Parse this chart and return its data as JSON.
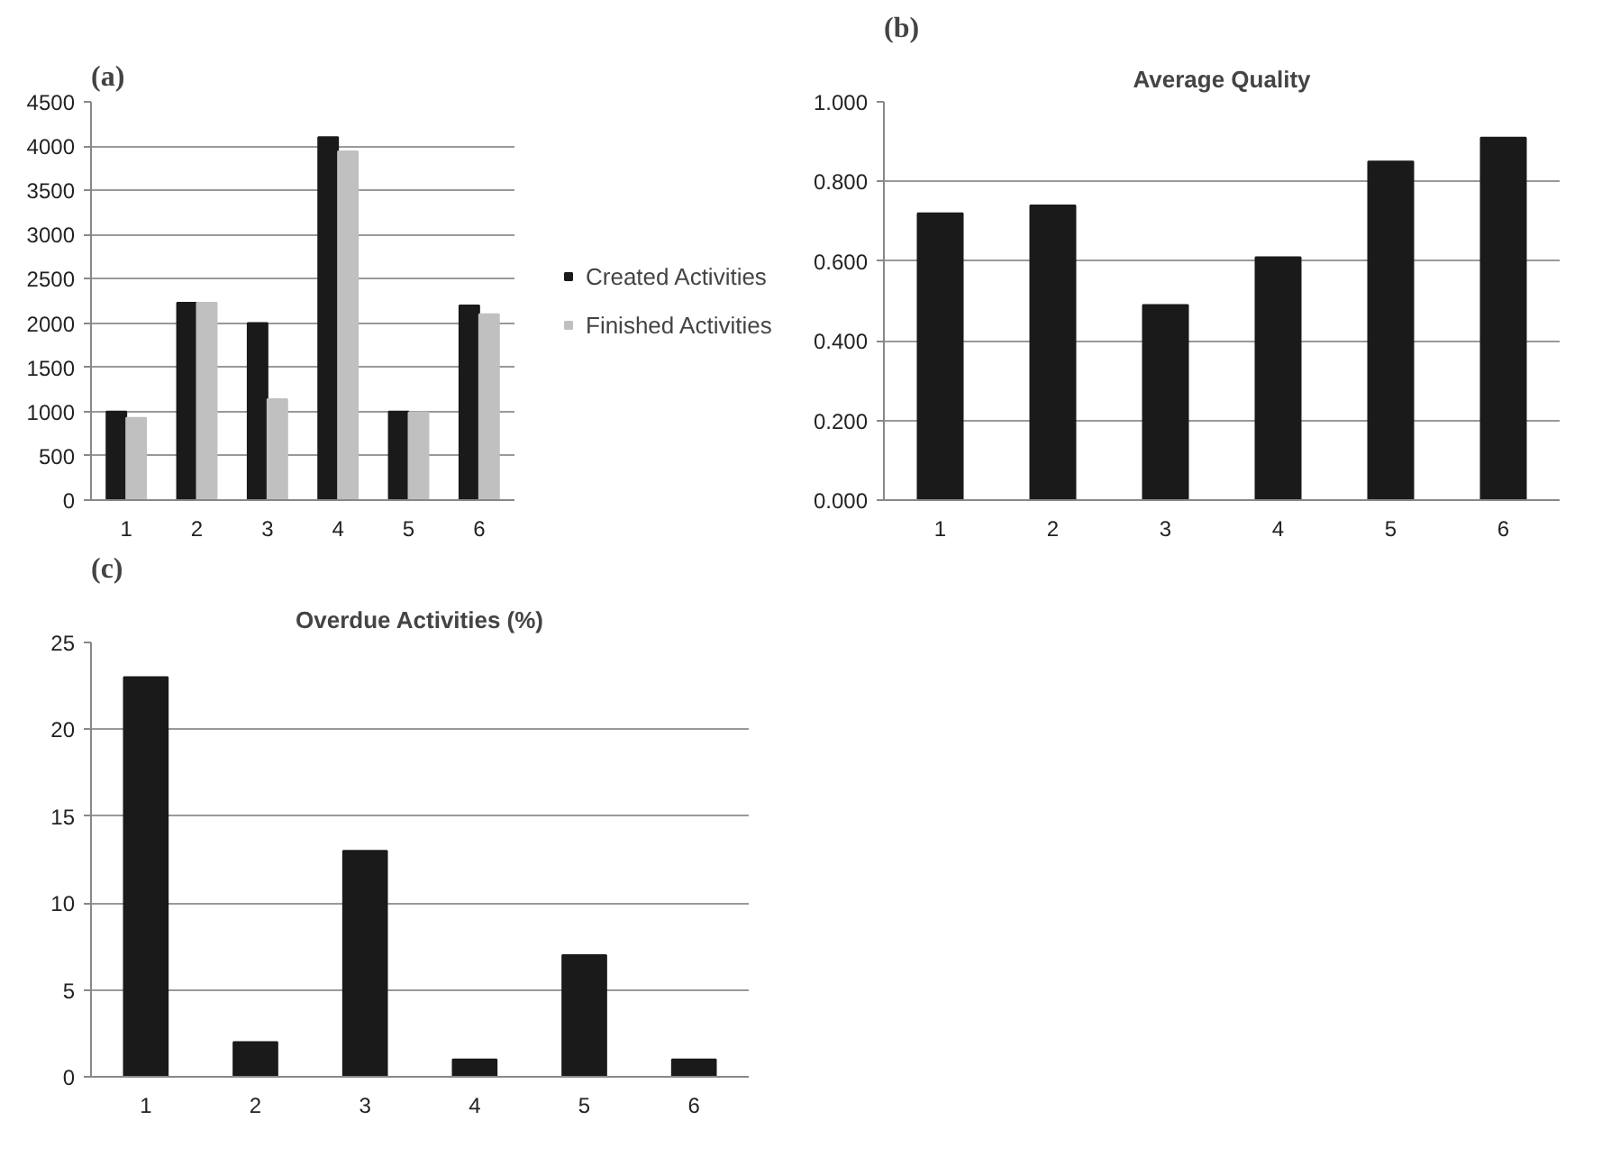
{
  "chart_data": [
    {
      "type": "bar",
      "annotations": [
        "(a)"
      ],
      "categories": [
        "1",
        "2",
        "3",
        "4",
        "5",
        "6"
      ],
      "series": [
        {
          "name": "Created Activities",
          "color": "#1a1a1a",
          "values": [
            1000,
            2230,
            2000,
            4100,
            1000,
            2200
          ]
        },
        {
          "name": "Finished Activities",
          "color": "#c0c0c0",
          "values": [
            930,
            2230,
            1140,
            3940,
            990,
            2100
          ]
        }
      ],
      "ylim": [
        0,
        4500
      ],
      "yticks": [
        0,
        500,
        1000,
        1500,
        2000,
        2500,
        3000,
        3500,
        4000,
        4500
      ],
      "grid": "y",
      "legend": "right"
    },
    {
      "type": "bar",
      "annotations": [
        "(b)"
      ],
      "title": "Average Quality",
      "categories": [
        "1",
        "2",
        "3",
        "4",
        "5",
        "6"
      ],
      "series": [
        {
          "color": "#1a1a1a",
          "values": [
            0.72,
            0.74,
            0.49,
            0.61,
            0.85,
            0.91
          ]
        }
      ],
      "ylim": [
        0,
        1
      ],
      "yticks": [
        {
          "value": 0,
          "label": "0.000"
        },
        {
          "value": 0.2,
          "label": "0.200"
        },
        {
          "value": 0.4,
          "label": "0.400"
        },
        {
          "value": 0.6,
          "label": "0.600"
        },
        {
          "value": 0.8,
          "label": "0.800"
        },
        {
          "value": 1,
          "label": "1.000"
        }
      ],
      "grid": "y"
    },
    {
      "type": "bar",
      "annotations": [
        "(c)"
      ],
      "title": "Overdue Activities (%)",
      "categories": [
        "1",
        "2",
        "3",
        "4",
        "5",
        "6"
      ],
      "series": [
        {
          "color": "#1a1a1a",
          "values": [
            23,
            2,
            13,
            1,
            7,
            1
          ]
        }
      ],
      "ylim": [
        0,
        25
      ],
      "yticks": [
        0,
        5,
        10,
        15,
        20,
        25
      ],
      "grid": "y"
    }
  ]
}
